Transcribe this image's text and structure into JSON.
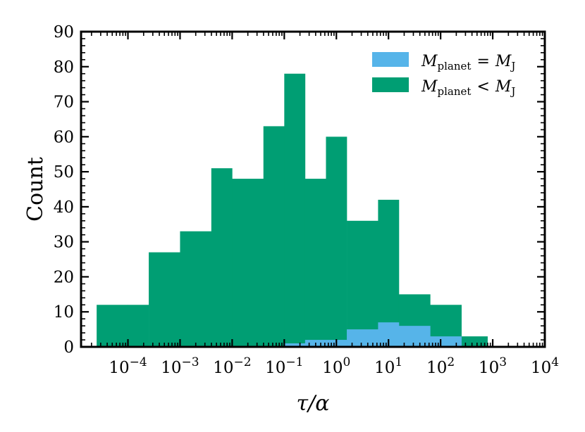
{
  "chart_data": {
    "type": "bar",
    "subtype": "histogram",
    "xscale": "log",
    "xlabel": "τ/α",
    "ylabel": "Count",
    "xlim": [
      1.26e-05,
      10000
    ],
    "ylim": [
      0,
      90
    ],
    "yticks": [
      0,
      10,
      20,
      30,
      40,
      50,
      60,
      70,
      80,
      90
    ],
    "xticks": [
      {
        "value": 0.0001,
        "base": "10",
        "exp": "−4"
      },
      {
        "value": 0.001,
        "base": "10",
        "exp": "−3"
      },
      {
        "value": 0.01,
        "base": "10",
        "exp": "−2"
      },
      {
        "value": 0.1,
        "base": "10",
        "exp": "−1"
      },
      {
        "value": 1,
        "base": "10",
        "exp": "0"
      },
      {
        "value": 10,
        "base": "10",
        "exp": "1"
      },
      {
        "value": 100,
        "base": "10",
        "exp": "2"
      },
      {
        "value": 1000,
        "base": "10",
        "exp": "3"
      },
      {
        "value": 10000,
        "base": "10",
        "exp": "4"
      }
    ],
    "bin_edges": [
      2.51e-05,
      0.0001,
      0.000251,
      0.001,
      0.00398,
      0.01,
      0.0398,
      0.1,
      0.251,
      0.631,
      1.585,
      6.31,
      15.85,
      63.1,
      251,
      794,
      2512
    ],
    "series": [
      {
        "name": "M_planet < M_J",
        "color": "#009E73",
        "values": [
          12,
          12,
          27,
          33,
          51,
          48,
          63,
          78,
          48,
          60,
          36,
          42,
          15,
          12,
          3,
          0
        ]
      },
      {
        "name": "M_planet = M_J",
        "color": "#56B4E9",
        "values": [
          0,
          0,
          0,
          0,
          0,
          0,
          0,
          1,
          2,
          2,
          5,
          7,
          6,
          3,
          0,
          0
        ]
      }
    ],
    "legend": {
      "position": "top-right",
      "entries": [
        {
          "series": 1,
          "main": "M",
          "sub": "planet",
          "op": "=",
          "rhs": "M",
          "rhs_sub": "J"
        },
        {
          "series": 0,
          "main": "M",
          "sub": "planet",
          "op": "<",
          "rhs": "M",
          "rhs_sub": "J"
        }
      ]
    },
    "grid": false
  }
}
